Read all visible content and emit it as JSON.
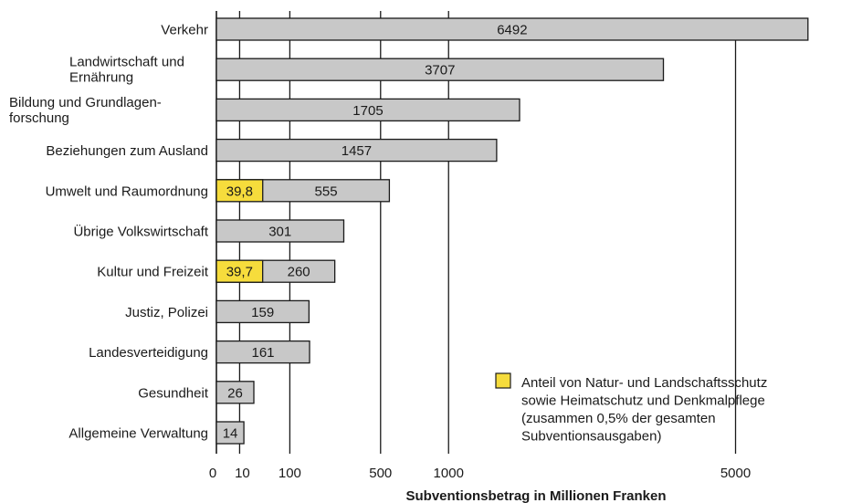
{
  "chart_data": {
    "type": "bar",
    "orientation": "horizontal",
    "categories": [
      [
        "Verkehr"
      ],
      [
        "Landwirtschaft und",
        "Ernährung"
      ],
      [
        "Bildung und Grundlagen-",
        "forschung"
      ],
      [
        "Beziehungen zum Ausland"
      ],
      [
        "Umwelt und Raumordnung"
      ],
      [
        "Übrige Volkswirtschaft"
      ],
      [
        "Kultur und Freizeit"
      ],
      [
        "Justiz, Polizei"
      ],
      [
        "Landesverteidigung"
      ],
      [
        "Gesundheit"
      ],
      [
        "Allgemeine Verwaltung"
      ]
    ],
    "series": [
      {
        "values": [
          6492,
          3707,
          1705,
          1457,
          555,
          301,
          260,
          159,
          161,
          26,
          14
        ],
        "labels": [
          "6492",
          "3707",
          "1705",
          "1457",
          "555",
          "301",
          "260",
          "159",
          "161",
          "26",
          "14"
        ],
        "color": "#c8c8c8"
      },
      {
        "values": [
          null,
          null,
          null,
          null,
          39.8,
          null,
          39.7,
          null,
          null,
          null,
          null
        ],
        "labels": [
          null,
          null,
          null,
          null,
          "39,8",
          null,
          "39,7",
          null,
          null,
          null,
          null
        ],
        "color": "#f6dc3c"
      }
    ],
    "x_ticks": [
      {
        "value": 0,
        "label": "0"
      },
      {
        "value": 10,
        "label": "10"
      },
      {
        "value": 100,
        "label": "100"
      },
      {
        "value": 500,
        "label": "500"
      },
      {
        "value": 1000,
        "label": "1000"
      },
      {
        "value": 5000,
        "label": "5000"
      }
    ],
    "xlabel": "Subventionsbetrag in Millionen Franken",
    "x_scale": "square-root",
    "grid": true,
    "legend": {
      "position": "bottom-right",
      "text_lines": [
        "Anteil von Natur- und Landschaftsschutz",
        "sowie Heimatschutz und Denkmalpflege",
        "(zusammen 0,5% der gesamten",
        "Subventionsausgaben)"
      ],
      "color": "#f6dc3c"
    }
  }
}
